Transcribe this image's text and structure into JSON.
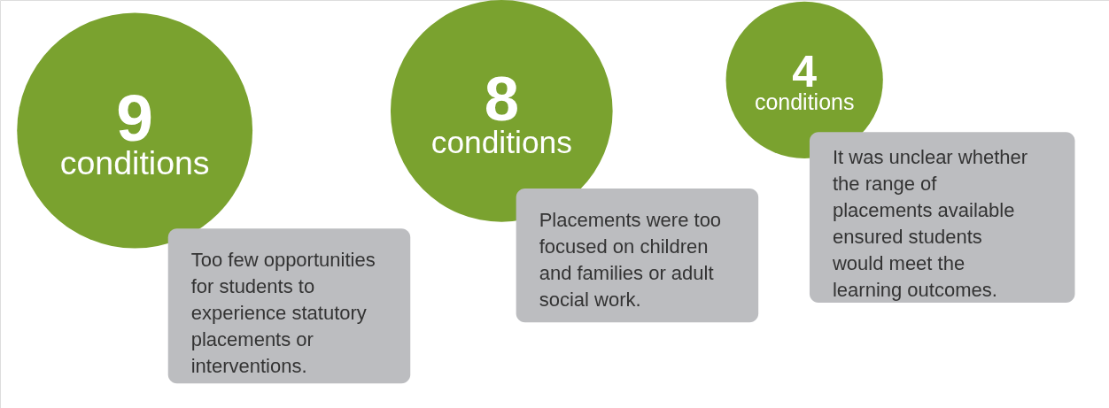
{
  "chart_data": {
    "type": "other",
    "categories": [
      "Too few opportunities\nfor students to\nexperience statutory\nplacements or\ninterventions.",
      "Placements were too\nfocused on children\nand families or adult\nsocial work.",
      "It was unclear whether\nthe range of\nplacements available\nensured students\nwould meet the\nlearning outcomes."
    ],
    "values": [
      9,
      8,
      4
    ],
    "data_labels": true,
    "annotations": [
      "conditions",
      "conditions",
      "conditions"
    ],
    "color": "#7aa22f"
  }
}
